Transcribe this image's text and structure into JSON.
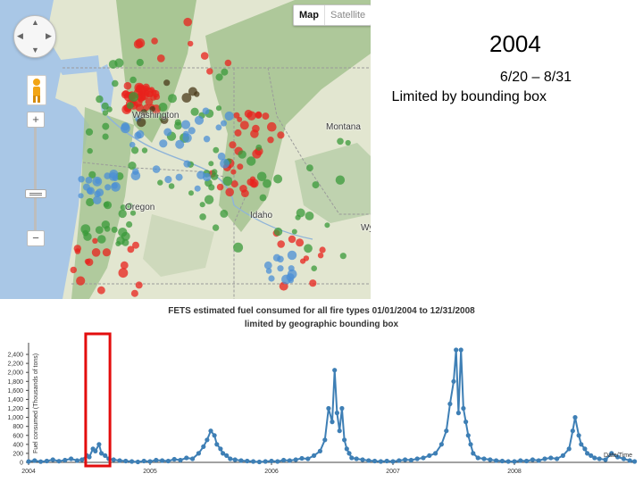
{
  "map": {
    "type_map": "Map",
    "type_satellite": "Satellite",
    "zoom_in": "+",
    "zoom_out": "−",
    "labels": {
      "washington": "Washington",
      "montana": "Montana",
      "oregon": "Oregon",
      "idaho": "Idaho",
      "wy": "Wy"
    },
    "colors": {
      "red": "#e8221c",
      "green": "#3a9a3a",
      "blue": "#4b8fd6",
      "dark": "#4a3a1a"
    }
  },
  "slide": {
    "year": "2004",
    "date_range": "6/20 – 8/31",
    "note": "Limited by bounding box"
  },
  "chart_title": {
    "line1": "FETS estimated fuel consumed for all fire types 01/01/2004 to 12/31/2008",
    "line2": "limited by geographic bounding box"
  },
  "chart_data": {
    "type": "line",
    "title": "FETS estimated fuel consumed for all fire types 01/01/2004 to 12/31/2008",
    "subtitle": "limited by geographic bounding box",
    "ylabel": "Fuel consumed (Thousands of tons)",
    "xlabel": "Date/Time",
    "xticks": [
      "2004",
      "2005",
      "2006",
      "2007",
      "2008"
    ],
    "yticks": [
      "0",
      "200",
      "400",
      "600",
      "800",
      "1,000",
      "1,200",
      "1,400",
      "1,600",
      "1,800",
      "2,000",
      "2,200",
      "2,400"
    ],
    "ylim": [
      0,
      2500
    ],
    "series_color": "#3e7fb5",
    "highlight": {
      "from": 2004.47,
      "to": 2004.67,
      "color": "#e30d0d"
    },
    "x": [
      2004.0,
      2004.05,
      2004.1,
      2004.15,
      2004.2,
      2004.25,
      2004.3,
      2004.35,
      2004.4,
      2004.44,
      2004.48,
      2004.5,
      2004.53,
      2004.55,
      2004.58,
      2004.6,
      2004.63,
      2004.66,
      2004.7,
      2004.75,
      2004.8,
      2004.85,
      2004.9,
      2004.95,
      2005.0,
      2005.05,
      2005.1,
      2005.15,
      2005.2,
      2005.25,
      2005.3,
      2005.35,
      2005.4,
      2005.44,
      2005.47,
      2005.5,
      2005.53,
      2005.55,
      2005.58,
      2005.6,
      2005.63,
      2005.66,
      2005.7,
      2005.75,
      2005.8,
      2005.85,
      2005.9,
      2005.95,
      2006.0,
      2006.05,
      2006.1,
      2006.15,
      2006.2,
      2006.25,
      2006.3,
      2006.35,
      2006.4,
      2006.44,
      2006.47,
      2006.5,
      2006.52,
      2006.54,
      2006.56,
      2006.58,
      2006.6,
      2006.62,
      2006.64,
      2006.66,
      2006.7,
      2006.75,
      2006.8,
      2006.85,
      2006.9,
      2006.95,
      2007.0,
      2007.05,
      2007.1,
      2007.15,
      2007.2,
      2007.25,
      2007.3,
      2007.35,
      2007.4,
      2007.44,
      2007.47,
      2007.5,
      2007.52,
      2007.54,
      2007.56,
      2007.58,
      2007.6,
      2007.62,
      2007.64,
      2007.66,
      2007.7,
      2007.75,
      2007.8,
      2007.85,
      2007.9,
      2007.95,
      2008.0,
      2008.05,
      2008.1,
      2008.15,
      2008.2,
      2008.25,
      2008.3,
      2008.35,
      2008.4,
      2008.45,
      2008.48,
      2008.5,
      2008.53,
      2008.55,
      2008.58,
      2008.6,
      2008.63,
      2008.66,
      2008.7,
      2008.75,
      2008.8,
      2008.85,
      2008.9,
      2008.95,
      2008.99
    ],
    "y": [
      20,
      40,
      15,
      30,
      60,
      25,
      50,
      80,
      40,
      60,
      150,
      120,
      300,
      250,
      400,
      200,
      150,
      80,
      60,
      40,
      30,
      20,
      10,
      30,
      20,
      50,
      40,
      30,
      70,
      50,
      100,
      80,
      200,
      350,
      500,
      700,
      600,
      400,
      300,
      200,
      150,
      80,
      60,
      40,
      30,
      20,
      10,
      20,
      30,
      20,
      50,
      40,
      60,
      90,
      80,
      150,
      250,
      500,
      1200,
      900,
      2050,
      1100,
      700,
      1200,
      500,
      300,
      200,
      100,
      80,
      60,
      40,
      30,
      20,
      30,
      20,
      40,
      60,
      50,
      80,
      100,
      150,
      200,
      400,
      700,
      1300,
      1800,
      2500,
      1100,
      2550,
      1200,
      900,
      600,
      400,
      200,
      100,
      80,
      60,
      40,
      30,
      20,
      20,
      40,
      30,
      60,
      40,
      80,
      100,
      80,
      150,
      300,
      700,
      1000,
      600,
      400,
      300,
      200,
      150,
      100,
      80,
      60,
      200,
      120,
      80,
      40,
      20
    ]
  }
}
